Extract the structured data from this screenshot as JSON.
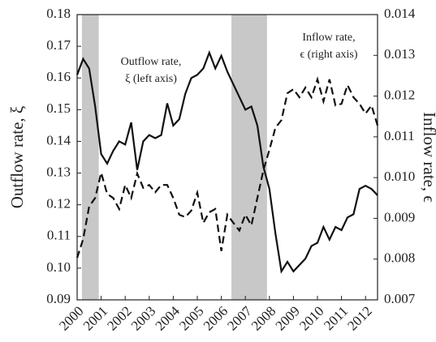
{
  "chart_data": {
    "type": "line",
    "y_label": "Outflow rate, ξ",
    "y2_label": "Inflow rate, ϵ",
    "annotations": [
      {
        "lines": [
          "Outflow rate,",
          "ξ  (left axis)"
        ]
      },
      {
        "lines": [
          "Inflow rate,",
          "ϵ  (right axis)"
        ]
      }
    ],
    "shaded": [
      [
        2000.2,
        2000.9
      ],
      [
        2006.42,
        2007.9
      ]
    ],
    "shade_color": "#c8c8c8",
    "x": [
      2000,
      2000.25,
      2000.5,
      2000.75,
      2001,
      2001.25,
      2001.5,
      2001.75,
      2002,
      2002.25,
      2002.5,
      2002.75,
      2003,
      2003.25,
      2003.5,
      2003.75,
      2004,
      2004.25,
      2004.5,
      2004.75,
      2005,
      2005.25,
      2005.5,
      2005.75,
      2006,
      2006.25,
      2006.5,
      2006.75,
      2007,
      2007.25,
      2007.5,
      2007.75,
      2008,
      2008.25,
      2008.5,
      2008.75,
      2009,
      2009.25,
      2009.5,
      2009.75,
      2010,
      2010.25,
      2010.5,
      2010.75,
      2011,
      2011.25,
      2011.5,
      2011.75,
      2012,
      2012.25,
      2012.5
    ],
    "xlim": [
      2000,
      2012.5
    ],
    "xticks": [
      2000,
      2001,
      2002,
      2003,
      2004,
      2005,
      2006,
      2007,
      2008,
      2009,
      2010,
      2011,
      2012
    ],
    "ylim": [
      0.09,
      0.18
    ],
    "yticks": [
      0.09,
      {
        "value": 0.1,
        "label": "0.10"
      },
      0.11,
      0.12,
      0.13,
      0.14,
      0.15,
      0.16,
      0.17,
      0.18
    ],
    "y2lim": [
      0.007,
      0.014
    ],
    "y2ticks": [
      0.007,
      0.008,
      0.009,
      {
        "value": 0.01,
        "label": "0.010"
      },
      0.011,
      0.012,
      0.013,
      0.014
    ],
    "series": [
      {
        "name": "Outflow rate",
        "color": "#111111",
        "dash": false,
        "values": [
          0.161,
          0.166,
          0.163,
          0.151,
          0.136,
          0.133,
          0.137,
          0.14,
          0.139,
          0.146,
          0.131,
          0.14,
          0.142,
          0.141,
          0.142,
          0.152,
          0.145,
          0.147,
          0.155,
          0.16,
          0.161,
          0.163,
          0.168,
          0.163,
          0.167,
          0.162,
          0.158,
          0.154,
          0.15,
          0.151,
          0.145,
          0.132,
          0.125,
          0.111,
          0.099,
          0.102,
          0.099,
          0.101,
          0.103,
          0.107,
          0.108,
          0.113,
          0.109,
          0.113,
          0.112,
          0.116,
          0.117,
          0.125,
          0.126,
          0.125,
          0.123
        ]
      },
      {
        "name": "Inflow rate",
        "color": "#111111",
        "dash": true,
        "axis": "y2",
        "values": [
          0.00803,
          0.00849,
          0.00929,
          0.0095,
          0.01012,
          0.0096,
          0.0095,
          0.00923,
          0.00982,
          0.0095,
          0.0101,
          0.00975,
          0.00982,
          0.00964,
          0.00982,
          0.00982,
          0.0095,
          0.00909,
          0.00903,
          0.00919,
          0.00963,
          0.00889,
          0.00915,
          0.00923,
          0.0082,
          0.00909,
          0.00889,
          0.0087,
          0.00909,
          0.00883,
          0.0095,
          0.01018,
          0.01068,
          0.01122,
          0.01141,
          0.01207,
          0.01217,
          0.01197,
          0.01221,
          0.01197,
          0.01241,
          0.01187,
          0.01241,
          0.01177,
          0.01181,
          0.01227,
          0.01197,
          0.01181,
          0.01157,
          0.01177,
          0.01128
        ]
      }
    ]
  }
}
